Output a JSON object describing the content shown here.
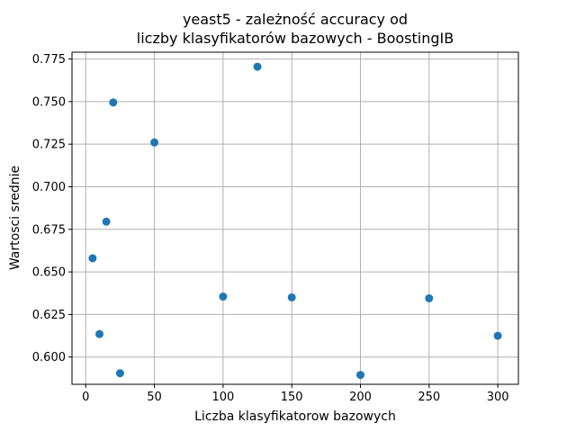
{
  "chart_data": {
    "type": "scatter",
    "title": "yeast5 - zależność accuracy od",
    "subtitle": "liczby klasyfikatorów bazowych - BoostingIB",
    "xlabel": "Liczba klasyfikatorow bazowych",
    "ylabel": "Wartosci srednie",
    "xlim": [
      -10,
      315
    ],
    "ylim": [
      0.584,
      0.779
    ],
    "xticks": [
      "0",
      "50",
      "100",
      "150",
      "200",
      "250",
      "300"
    ],
    "yticks": [
      "0.600",
      "0.625",
      "0.650",
      "0.675",
      "0.700",
      "0.725",
      "0.750",
      "0.775"
    ],
    "grid": true,
    "point_color": "#1f77b4",
    "x": [
      5,
      10,
      15,
      20,
      25,
      50,
      100,
      125,
      150,
      200,
      250,
      300
    ],
    "y": [
      0.658,
      0.6135,
      0.6795,
      0.7495,
      0.5905,
      0.726,
      0.6355,
      0.7705,
      0.635,
      0.5895,
      0.6345,
      0.6125
    ]
  }
}
